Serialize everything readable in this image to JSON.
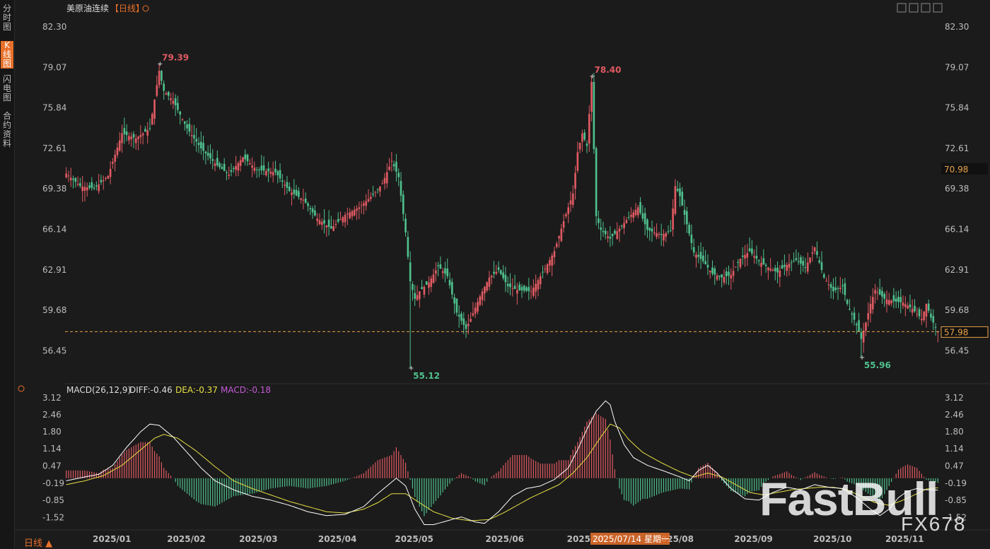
{
  "sidebar": {
    "tabs": [
      {
        "label": "分时图",
        "active": false
      },
      {
        "label": "K线图",
        "active": true
      },
      {
        "label": "闪电图",
        "active": false
      },
      {
        "label": "合约资料",
        "active": false
      }
    ]
  },
  "header": {
    "title": "美原油连续",
    "period": "【日线】"
  },
  "macd_header": {
    "name": "MACD(26,12,9)",
    "diff": "DIFF:-0.46",
    "dea": "DEA:-0.37",
    "macd": "MACD:-0.18"
  },
  "bottom": {
    "period_button": "日线 ▲",
    "crosshair_date": "2025/07/14 星期一"
  },
  "watermark": {
    "brand": "FastBull",
    "code": "FX678"
  },
  "colors": {
    "up": "#e05a62",
    "down": "#4fc08d",
    "dif": "#ffffff",
    "dea": "#e6e045",
    "accent": "#e8702a",
    "last": "#e8a24a"
  },
  "chart_data": [
    {
      "type": "candlestick",
      "title": "美原油连续",
      "ylim": [
        54.0,
        83.2
      ],
      "y_ticks": [
        "82.30",
        "79.07",
        "75.84",
        "72.61",
        "69.38",
        "66.14",
        "62.91",
        "59.68",
        "56.45"
      ],
      "x_tick_labels": [
        "2025/01",
        "2025/02",
        "2025/03",
        "2025/04",
        "2025/05",
        "2025/06",
        "2025/07",
        "2025/08",
        "2025/09",
        "2025/10",
        "2025/11"
      ],
      "close_path": [
        [
          0,
          70.6
        ],
        [
          6,
          69.6
        ],
        [
          12,
          69.4
        ],
        [
          18,
          70.4
        ],
        [
          24,
          73.8
        ],
        [
          30,
          73.4
        ],
        [
          36,
          74.2
        ],
        [
          40,
          78.8
        ],
        [
          42,
          77.2
        ],
        [
          46,
          76.4
        ],
        [
          52,
          74.2
        ],
        [
          58,
          72.6
        ],
        [
          64,
          71.4
        ],
        [
          70,
          70.5
        ],
        [
          76,
          71.9
        ],
        [
          82,
          70.9
        ],
        [
          90,
          70.7
        ],
        [
          96,
          69.2
        ],
        [
          102,
          68.5
        ],
        [
          108,
          67.0
        ],
        [
          114,
          66.2
        ],
        [
          120,
          67.3
        ],
        [
          126,
          67.9
        ],
        [
          132,
          68.9
        ],
        [
          136,
          69.8
        ],
        [
          140,
          71.6
        ],
        [
          143,
          70.3
        ],
        [
          146,
          65.9
        ],
        [
          148,
          62.0
        ],
        [
          150,
          60.6
        ],
        [
          152,
          61.2
        ],
        [
          156,
          61.9
        ],
        [
          160,
          63.2
        ],
        [
          164,
          62.4
        ],
        [
          168,
          59.5
        ],
        [
          172,
          58.2
        ],
        [
          174,
          59.0
        ],
        [
          178,
          60.8
        ],
        [
          182,
          62.3
        ],
        [
          186,
          62.9
        ],
        [
          190,
          61.6
        ],
        [
          194,
          61.3
        ],
        [
          200,
          61.2
        ],
        [
          206,
          63.0
        ],
        [
          210,
          64.4
        ],
        [
          214,
          66.8
        ],
        [
          218,
          69.0
        ],
        [
          220,
          72.3
        ],
        [
          222,
          73.8
        ],
        [
          224,
          72.8
        ],
        [
          226,
          77.9
        ],
        [
          228,
          67.2
        ],
        [
          230,
          66.1
        ],
        [
          234,
          65.4
        ],
        [
          238,
          66.2
        ],
        [
          242,
          67.1
        ],
        [
          246,
          67.9
        ],
        [
          250,
          66.1
        ],
        [
          256,
          65.7
        ],
        [
          260,
          66.0
        ],
        [
          262,
          69.6
        ],
        [
          264,
          68.8
        ],
        [
          266,
          67.3
        ],
        [
          270,
          64.3
        ],
        [
          274,
          63.6
        ],
        [
          278,
          62.6
        ],
        [
          282,
          62.3
        ],
        [
          286,
          62.5
        ],
        [
          290,
          63.8
        ],
        [
          294,
          64.4
        ],
        [
          298,
          63.6
        ],
        [
          302,
          63.1
        ],
        [
          306,
          62.7
        ],
        [
          310,
          63.3
        ],
        [
          314,
          63.7
        ],
        [
          318,
          63.1
        ],
        [
          322,
          64.7
        ],
        [
          326,
          62.3
        ],
        [
          330,
          61.2
        ],
        [
          334,
          61.6
        ],
        [
          336,
          60.2
        ],
        [
          340,
          58.5
        ],
        [
          342,
          57.4
        ],
        [
          344,
          58.7
        ],
        [
          346,
          60.2
        ],
        [
          348,
          61.3
        ],
        [
          352,
          60.6
        ],
        [
          356,
          60.4
        ],
        [
          360,
          60.3
        ],
        [
          364,
          59.8
        ],
        [
          368,
          59.0
        ],
        [
          370,
          60.2
        ],
        [
          372,
          59.1
        ],
        [
          374,
          58.3
        ],
        [
          375,
          57.98
        ]
      ],
      "highs": [
        {
          "label": "79.39",
          "value": 79.39
        },
        {
          "label": "78.40",
          "value": 78.4
        }
      ],
      "lows": [
        {
          "label": "55.12",
          "value": 55.12
        },
        {
          "label": "55.96",
          "value": 55.96
        }
      ],
      "last_price": {
        "label": "57.98",
        "value": 57.98
      },
      "marker_price": {
        "label": "70.98",
        "value": 70.98
      }
    },
    {
      "type": "line",
      "title": "MACD(26,12,9)",
      "ylim": [
        -1.95,
        3.2
      ],
      "y_ticks": [
        "3.12",
        "2.46",
        "1.80",
        "1.14",
        "0.47",
        "-0.19",
        "-0.85",
        "-1.52"
      ],
      "series": [
        {
          "name": "DIFF",
          "values": [
            [
              0,
              -0.1
            ],
            [
              8,
              0.05
            ],
            [
              14,
              0.15
            ],
            [
              20,
              0.5
            ],
            [
              26,
              1.2
            ],
            [
              32,
              1.8
            ],
            [
              36,
              2.1
            ],
            [
              40,
              2.05
            ],
            [
              46,
              1.6
            ],
            [
              52,
              1.0
            ],
            [
              58,
              0.4
            ],
            [
              64,
              -0.1
            ],
            [
              72,
              -0.45
            ],
            [
              80,
              -0.7
            ],
            [
              88,
              -0.85
            ],
            [
              96,
              -1.05
            ],
            [
              104,
              -1.3
            ],
            [
              112,
              -1.45
            ],
            [
              120,
              -1.4
            ],
            [
              128,
              -1.1
            ],
            [
              134,
              -0.6
            ],
            [
              138,
              -0.3
            ],
            [
              142,
              0.0
            ],
            [
              146,
              -0.3
            ],
            [
              150,
              -1.2
            ],
            [
              154,
              -1.8
            ],
            [
              158,
              -1.8
            ],
            [
              164,
              -1.65
            ],
            [
              170,
              -1.5
            ],
            [
              176,
              -1.7
            ],
            [
              180,
              -1.75
            ],
            [
              186,
              -1.3
            ],
            [
              192,
              -0.7
            ],
            [
              198,
              -0.4
            ],
            [
              204,
              -0.3
            ],
            [
              210,
              -0.05
            ],
            [
              216,
              0.4
            ],
            [
              220,
              1.1
            ],
            [
              224,
              1.9
            ],
            [
              228,
              2.6
            ],
            [
              232,
              3.0
            ],
            [
              234,
              2.85
            ],
            [
              236,
              2.2
            ],
            [
              240,
              1.3
            ],
            [
              244,
              0.8
            ],
            [
              250,
              0.5
            ],
            [
              258,
              0.25
            ],
            [
              264,
              0.05
            ],
            [
              268,
              -0.1
            ],
            [
              272,
              0.3
            ],
            [
              276,
              0.5
            ],
            [
              280,
              0.2
            ],
            [
              286,
              -0.4
            ],
            [
              292,
              -0.8
            ],
            [
              298,
              -0.85
            ],
            [
              304,
              -0.55
            ],
            [
              310,
              -0.35
            ],
            [
              316,
              -0.45
            ],
            [
              322,
              -0.25
            ],
            [
              328,
              -0.35
            ],
            [
              334,
              -0.4
            ],
            [
              340,
              -0.75
            ],
            [
              346,
              -1.2
            ],
            [
              350,
              -1.45
            ],
            [
              354,
              -1.2
            ],
            [
              358,
              -0.75
            ],
            [
              362,
              -0.5
            ],
            [
              366,
              -0.4
            ],
            [
              370,
              -0.45
            ],
            [
              375,
              -0.46
            ]
          ]
        },
        {
          "name": "DEA",
          "values": [
            [
              0,
              -0.25
            ],
            [
              8,
              -0.1
            ],
            [
              16,
              0.1
            ],
            [
              24,
              0.5
            ],
            [
              32,
              1.1
            ],
            [
              38,
              1.55
            ],
            [
              42,
              1.7
            ],
            [
              48,
              1.55
            ],
            [
              56,
              1.05
            ],
            [
              64,
              0.45
            ],
            [
              72,
              -0.1
            ],
            [
              80,
              -0.4
            ],
            [
              88,
              -0.65
            ],
            [
              96,
              -0.9
            ],
            [
              104,
              -1.1
            ],
            [
              112,
              -1.3
            ],
            [
              120,
              -1.35
            ],
            [
              128,
              -1.2
            ],
            [
              134,
              -0.95
            ],
            [
              140,
              -0.6
            ],
            [
              146,
              -0.6
            ],
            [
              152,
              -0.95
            ],
            [
              158,
              -1.3
            ],
            [
              166,
              -1.55
            ],
            [
              174,
              -1.65
            ],
            [
              182,
              -1.6
            ],
            [
              188,
              -1.35
            ],
            [
              194,
              -1.05
            ],
            [
              200,
              -0.75
            ],
            [
              206,
              -0.5
            ],
            [
              212,
              -0.25
            ],
            [
              218,
              0.2
            ],
            [
              224,
              0.8
            ],
            [
              230,
              1.6
            ],
            [
              234,
              2.1
            ],
            [
              238,
              1.95
            ],
            [
              242,
              1.5
            ],
            [
              248,
              1.0
            ],
            [
              256,
              0.6
            ],
            [
              264,
              0.25
            ],
            [
              270,
              0.05
            ],
            [
              276,
              0.2
            ],
            [
              282,
              0.05
            ],
            [
              288,
              -0.25
            ],
            [
              294,
              -0.55
            ],
            [
              300,
              -0.65
            ],
            [
              306,
              -0.55
            ],
            [
              312,
              -0.45
            ],
            [
              318,
              -0.4
            ],
            [
              324,
              -0.35
            ],
            [
              330,
              -0.35
            ],
            [
              336,
              -0.45
            ],
            [
              342,
              -0.7
            ],
            [
              348,
              -0.95
            ],
            [
              354,
              -1.05
            ],
            [
              360,
              -0.85
            ],
            [
              366,
              -0.6
            ],
            [
              370,
              -0.42
            ],
            [
              375,
              -0.37
            ]
          ]
        }
      ]
    }
  ]
}
